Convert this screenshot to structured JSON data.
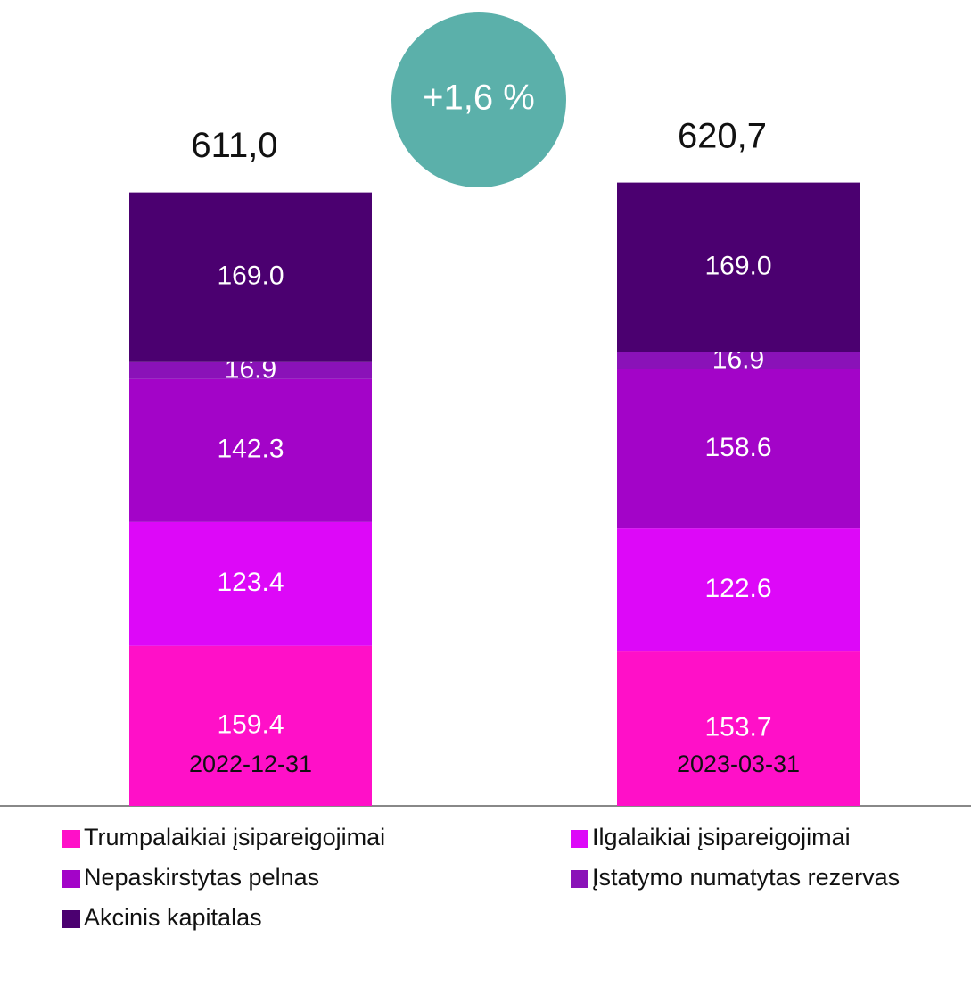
{
  "chart_data": {
    "type": "stacked_bar",
    "categories": [
      "2022-12-31",
      "2023-03-31"
    ],
    "series": [
      {
        "name": "Trumpalaikiai įsipareigojimai",
        "color": "#ff10c8",
        "values": [
          159.4,
          153.7
        ],
        "value_labels": [
          "159.4",
          "153.7"
        ]
      },
      {
        "name": "Ilgalaikiai įsipareigojimai",
        "color": "#dd08f8",
        "values": [
          123.4,
          122.6
        ],
        "value_labels": [
          "123.4",
          "122.6"
        ]
      },
      {
        "name": "Nepaskirstytas pelnas",
        "color": "#a304c8",
        "values": [
          142.3,
          158.6
        ],
        "value_labels": [
          "142.3",
          "158.6"
        ]
      },
      {
        "name": "Įstatymo numatytas rezervas",
        "color": "#8a12b8",
        "values": [
          16.9,
          16.9
        ],
        "value_labels": [
          "16.9",
          "16.9"
        ]
      },
      {
        "name": "Akcinis kapitalas",
        "color": "#4b0070",
        "values": [
          169,
          169
        ],
        "value_labels": [
          "169.0",
          "169.0"
        ]
      }
    ],
    "totals": [
      611.0,
      620.7
    ],
    "total_labels": [
      "611,0",
      "620,7"
    ],
    "annotation": "+1,6 %",
    "ylim": [
      0,
      800
    ]
  }
}
